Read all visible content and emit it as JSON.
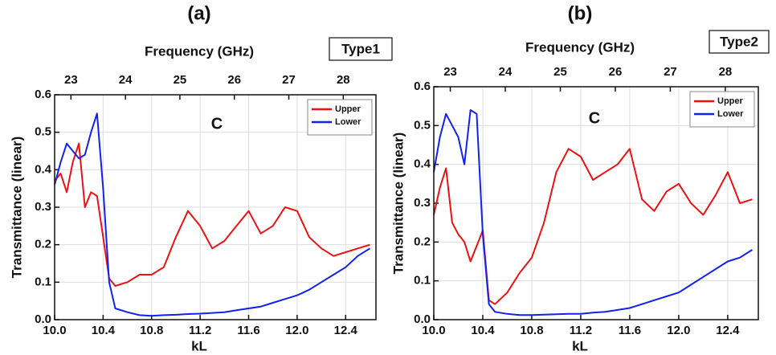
{
  "chart_data": [
    {
      "type": "line",
      "panel_label": "(a)",
      "tag": "Type1",
      "x2_label": "Frequency (GHz)",
      "xlabel": "kL",
      "ylabel": "Transmittance (linear)",
      "annotation": "C",
      "annotation_color": "#ff00ff",
      "grid": true,
      "legend": "upper right",
      "x": [
        10.0,
        10.05,
        10.1,
        10.15,
        10.2,
        10.25,
        10.3,
        10.35,
        10.4,
        10.45,
        10.5,
        10.6,
        10.7,
        10.8,
        10.9,
        11.0,
        11.1,
        11.2,
        11.3,
        11.4,
        11.5,
        11.6,
        11.7,
        11.8,
        11.9,
        12.0,
        12.1,
        12.2,
        12.3,
        12.4,
        12.5,
        12.6
      ],
      "series": [
        {
          "name": "Upper",
          "color": "#ee1111",
          "values": [
            0.37,
            0.39,
            0.34,
            0.42,
            0.47,
            0.3,
            0.34,
            0.33,
            0.22,
            0.11,
            0.09,
            0.1,
            0.12,
            0.12,
            0.14,
            0.22,
            0.29,
            0.25,
            0.19,
            0.21,
            0.25,
            0.29,
            0.23,
            0.25,
            0.3,
            0.29,
            0.22,
            0.19,
            0.17,
            0.18,
            0.19,
            0.2
          ]
        },
        {
          "name": "Lower",
          "color": "#1122ee",
          "values": [
            0.36,
            0.42,
            0.47,
            0.45,
            0.43,
            0.44,
            0.5,
            0.55,
            0.35,
            0.1,
            0.03,
            0.02,
            0.012,
            0.01,
            0.012,
            0.013,
            0.015,
            0.016,
            0.018,
            0.02,
            0.025,
            0.03,
            0.035,
            0.045,
            0.055,
            0.065,
            0.08,
            0.1,
            0.12,
            0.14,
            0.17,
            0.19
          ]
        }
      ],
      "xlim": [
        10.0,
        12.65
      ],
      "xticks": [
        {
          "value": 10.0,
          "label": "10.0"
        },
        10.4,
        10.8,
        11.2,
        11.6,
        {
          "value": 12.0,
          "label": "12.0"
        },
        12.4
      ],
      "x2lim": [
        22.7,
        28.6
      ],
      "x2ticks": [
        23,
        24,
        25,
        26,
        27,
        28
      ],
      "ylim": [
        0.0,
        0.6
      ],
      "yticks": [
        {
          "value": 0.0,
          "label": "0.0"
        },
        0.1,
        0.2,
        0.3,
        0.4,
        0.5,
        0.6
      ]
    },
    {
      "type": "line",
      "panel_label": "(b)",
      "tag": "Type2",
      "x2_label": "Frequency (GHz)",
      "xlabel": "kL",
      "ylabel": "Transmittance (linear)",
      "annotation": "C",
      "annotation_color": "#ff00ff",
      "grid": true,
      "legend": "upper right",
      "x": [
        10.0,
        10.05,
        10.1,
        10.15,
        10.2,
        10.25,
        10.3,
        10.35,
        10.4,
        10.45,
        10.5,
        10.6,
        10.7,
        10.8,
        10.9,
        11.0,
        11.1,
        11.2,
        11.3,
        11.4,
        11.5,
        11.6,
        11.7,
        11.8,
        11.9,
        12.0,
        12.1,
        12.2,
        12.3,
        12.4,
        12.5,
        12.6
      ],
      "series": [
        {
          "name": "Upper",
          "color": "#ee1111",
          "values": [
            0.27,
            0.34,
            0.39,
            0.25,
            0.22,
            0.2,
            0.15,
            0.19,
            0.23,
            0.05,
            0.04,
            0.07,
            0.12,
            0.16,
            0.25,
            0.38,
            0.44,
            0.42,
            0.36,
            0.38,
            0.4,
            0.44,
            0.31,
            0.28,
            0.33,
            0.35,
            0.3,
            0.27,
            0.32,
            0.38,
            0.3,
            0.31
          ]
        },
        {
          "name": "Lower",
          "color": "#1122ee",
          "values": [
            0.38,
            0.47,
            0.53,
            0.5,
            0.47,
            0.4,
            0.54,
            0.53,
            0.22,
            0.04,
            0.02,
            0.015,
            0.012,
            0.012,
            0.013,
            0.014,
            0.015,
            0.015,
            0.018,
            0.02,
            0.025,
            0.03,
            0.04,
            0.05,
            0.06,
            0.07,
            0.09,
            0.11,
            0.13,
            0.15,
            0.16,
            0.18
          ]
        }
      ],
      "xlim": [
        10.0,
        12.65
      ],
      "xticks": [
        {
          "value": 10.0,
          "label": "10.0"
        },
        10.4,
        10.8,
        11.2,
        11.6,
        {
          "value": 12.0,
          "label": "12.0"
        },
        12.4
      ],
      "x2lim": [
        22.7,
        28.6
      ],
      "x2ticks": [
        23,
        24,
        25,
        26,
        27,
        28
      ],
      "ylim": [
        0.0,
        0.6
      ],
      "yticks": [
        {
          "value": 0.0,
          "label": "0.0"
        },
        0.1,
        0.2,
        0.3,
        0.4,
        0.5,
        0.6
      ]
    }
  ]
}
